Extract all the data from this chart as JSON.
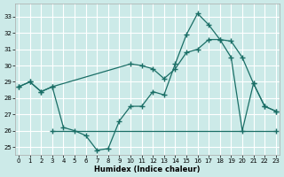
{
  "xlabel": "Humidex (Indice chaleur)",
  "bg_color": "#cceae8",
  "grid_color": "#ffffff",
  "line_color": "#1a6e66",
  "x_ticks": [
    0,
    1,
    2,
    3,
    4,
    5,
    6,
    7,
    8,
    9,
    10,
    11,
    12,
    13,
    14,
    15,
    16,
    17,
    18,
    19,
    20,
    21,
    22,
    23
  ],
  "y_ticks": [
    25,
    26,
    27,
    28,
    29,
    30,
    31,
    32,
    33
  ],
  "xlim": [
    -0.3,
    23.3
  ],
  "ylim": [
    24.5,
    33.8
  ],
  "line1_x": [
    0,
    1,
    2,
    3,
    4,
    5,
    6,
    7,
    8,
    9,
    10,
    11,
    12,
    13,
    14,
    15,
    16,
    17,
    18,
    19,
    20,
    21,
    22,
    23
  ],
  "line1_y": [
    28.7,
    29.0,
    28.4,
    28.7,
    26.2,
    26.0,
    25.7,
    24.8,
    24.9,
    26.6,
    27.5,
    27.5,
    28.4,
    28.2,
    30.1,
    31.9,
    33.2,
    32.5,
    31.6,
    30.5,
    26.0,
    28.9,
    27.5,
    27.2
  ],
  "line2_x": [
    0,
    1,
    2,
    3,
    10,
    11,
    12,
    13,
    14,
    15,
    16,
    17,
    18,
    19,
    20,
    21,
    22,
    23
  ],
  "line2_y": [
    28.7,
    29.0,
    28.4,
    28.7,
    30.1,
    30.0,
    29.8,
    29.2,
    29.8,
    30.8,
    31.0,
    31.6,
    31.6,
    31.5,
    30.5,
    28.9,
    27.5,
    27.2
  ],
  "line3_x": [
    3,
    23
  ],
  "line3_y": [
    26.0,
    26.0
  ],
  "marker_size": 4,
  "linewidth": 0.9
}
